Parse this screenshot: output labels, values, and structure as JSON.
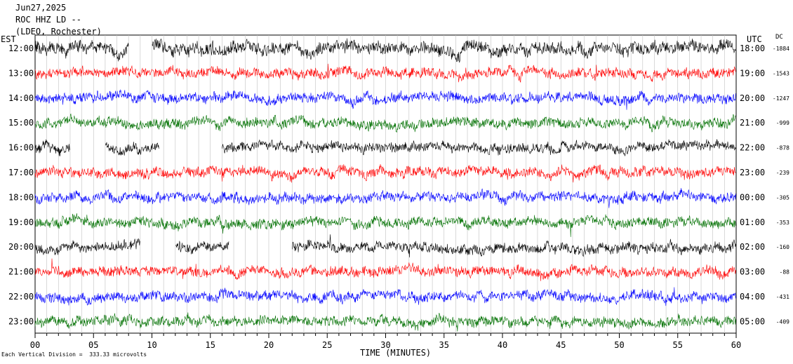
{
  "header": {
    "date": "Jun27,2025",
    "station": "ROC HHZ LD --",
    "network": "(LDEO, Rochester)"
  },
  "left_tz": "EST",
  "right_tz": "UTC",
  "dc_label": "DC",
  "footnote": "Each Vertical Division =  333.33 microvolts",
  "chart_data": {
    "type": "line",
    "title": "",
    "xlabel": "TIME (MINUTES)",
    "xlim": [
      0,
      60
    ],
    "x_ticks": [
      "00",
      "05",
      "10",
      "15",
      "20",
      "25",
      "30",
      "35",
      "40",
      "45",
      "50",
      "55",
      "60"
    ],
    "grid": "vertical lines every 1 minute",
    "colors": [
      "#000000",
      "#ff0000",
      "#0000ff",
      "#007000"
    ],
    "rows": [
      {
        "est": "12:00",
        "utc": "18:00",
        "dc": "-1884",
        "color": "#000000",
        "gaps": [
          [
            8,
            10
          ]
        ],
        "amp": 1.0
      },
      {
        "est": "13:00",
        "utc": "19:00",
        "dc": "-1543",
        "color": "#ff0000",
        "gaps": [],
        "amp": 0.8
      },
      {
        "est": "14:00",
        "utc": "20:00",
        "dc": "-1247",
        "color": "#0000ff",
        "gaps": [],
        "amp": 0.8
      },
      {
        "est": "15:00",
        "utc": "21:00",
        "dc": "-999",
        "color": "#007000",
        "gaps": [],
        "amp": 0.8
      },
      {
        "est": "16:00",
        "utc": "22:00",
        "dc": "-878",
        "color": "#000000",
        "gaps": [
          [
            3,
            6
          ],
          [
            10.6,
            16
          ]
        ],
        "amp": 0.8
      },
      {
        "est": "17:00",
        "utc": "23:00",
        "dc": "-239",
        "color": "#ff0000",
        "gaps": [],
        "amp": 0.8
      },
      {
        "est": "18:00",
        "utc": "00:00",
        "dc": "-305",
        "color": "#0000ff",
        "gaps": [],
        "amp": 0.8
      },
      {
        "est": "19:00",
        "utc": "01:00",
        "dc": "-353",
        "color": "#007000",
        "gaps": [],
        "amp": 0.8
      },
      {
        "est": "20:00",
        "utc": "02:00",
        "dc": "-160",
        "color": "#000000",
        "gaps": [
          [
            9,
            12
          ],
          [
            16.6,
            22
          ]
        ],
        "amp": 0.8
      },
      {
        "est": "21:00",
        "utc": "03:00",
        "dc": "-88",
        "color": "#ff0000",
        "gaps": [],
        "amp": 0.8
      },
      {
        "est": "22:00",
        "utc": "04:00",
        "dc": "-431",
        "color": "#0000ff",
        "gaps": [],
        "amp": 0.8
      },
      {
        "est": "23:00",
        "utc": "05:00",
        "dc": "-409",
        "color": "#007000",
        "gaps": [],
        "amp": 0.8
      }
    ]
  }
}
